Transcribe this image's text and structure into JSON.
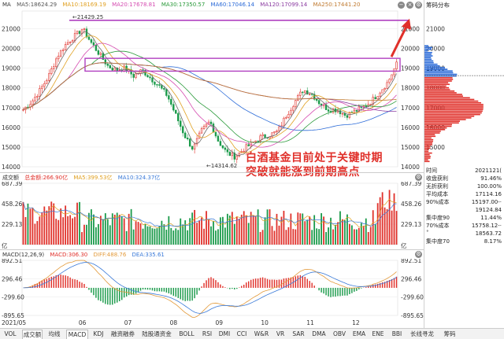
{
  "header_main": {
    "name": "MA",
    "ma5": "MA5:18624.29",
    "ma10": "MA10:18169.19",
    "ma20": "MA20:17678.81",
    "ma30": "MA30:17350.57",
    "ma60": "MA60:17046.14",
    "ma120": "MA120:17099.14",
    "ma250": "MA250:17441.20"
  },
  "header_vol": {
    "name": "成交额",
    "total": "总金额:266.90亿",
    "ma5": "MA5:399.53亿",
    "ma10": "MA10:324.37亿"
  },
  "header_macd": {
    "name": "MACD(12,26,9)",
    "macd": "MACD:306.30",
    "diff": "DIFF:488.76",
    "dea": "DEA:335.61"
  },
  "annotation": {
    "line1": "白酒基金目前处于关键时期",
    "line2": "突破就能涨到前期高点"
  },
  "price_labels": {
    "high": "21429.25",
    "low": "14314.62"
  },
  "colors": {
    "up": "#e0302a",
    "down": "#1a9a4a",
    "ma5": "#6a6a6a",
    "ma10": "#e0a020",
    "ma20": "#d54bb0",
    "ma30": "#2a9a3a",
    "ma60": "#2a6ad8",
    "ma120": "#8a3aa0",
    "ma250": "#c07a30",
    "box": "#b040c0",
    "annotation": "#e0302a",
    "diff": "#e39a3a",
    "dea": "#3a7ad8"
  },
  "chart_data": [
    {
      "type": "candlestick",
      "title": "MA",
      "ylim": [
        14000,
        21900
      ],
      "y_ticks": [
        "21000",
        "20000",
        "19000",
        "18000",
        "17000",
        "16000",
        "15000",
        "14000"
      ],
      "x_ticks": [
        "2021/05",
        "06",
        "07",
        "08",
        "09",
        "10",
        "11",
        "12"
      ],
      "ohlc_close": [
        16900,
        17300,
        17900,
        18600,
        19600,
        20200,
        20600,
        21000,
        20300,
        19700,
        19100,
        18900,
        19000,
        18600,
        18900,
        18500,
        18100,
        17600,
        16600,
        15600,
        14900,
        15800,
        16300,
        15300,
        14700,
        14500,
        14900,
        15200,
        15500,
        15600,
        15800,
        16600,
        17300,
        17900,
        17700,
        17200,
        16900,
        16900,
        16600,
        16800,
        17000,
        17300,
        17800,
        18300,
        19200
      ],
      "ma5": 18624.29,
      "ma10": 18169.19,
      "ma20": 17678.81,
      "ma30": 17350.57,
      "ma60": 17046.14,
      "ma120": 17099.14,
      "ma250": 17441.2,
      "annotations": [
        "21429.25",
        "14314.62"
      ]
    },
    {
      "type": "bar",
      "title": "成交额",
      "y_ticks": [
        "687.39",
        "458.26",
        "229.13"
      ],
      "unit": "亿",
      "total": 266.9,
      "ma5": 399.53,
      "ma10": 324.37
    },
    {
      "type": "bar",
      "title": "MACD(12,26,9)",
      "y_ticks": [
        "892.51",
        "296.46",
        "-299.60",
        "-895.65"
      ],
      "ylim": [
        -895.65,
        892.51
      ],
      "macd": 306.3,
      "diff": 488.76,
      "dea": 335.61
    }
  ],
  "tabs": [
    {
      "label": "VOL",
      "active": false
    },
    {
      "label": "成交额",
      "active": true
    },
    {
      "label": "均线",
      "active": false
    },
    {
      "label": "MACD",
      "active": true
    },
    {
      "label": "KDJ",
      "active": false
    },
    {
      "label": "融资融券",
      "active": false
    },
    {
      "label": "陆股通资金",
      "active": false
    },
    {
      "label": "BOLL",
      "active": false
    },
    {
      "label": "RSI",
      "active": false
    },
    {
      "label": "DMI",
      "active": false
    },
    {
      "label": "CCI",
      "active": false
    },
    {
      "label": "W&R",
      "active": false
    },
    {
      "label": "VR",
      "active": false
    },
    {
      "label": "SAR",
      "active": false
    },
    {
      "label": "DMA",
      "active": false
    },
    {
      "label": "OBV",
      "active": false
    },
    {
      "label": "EMA",
      "active": false
    },
    {
      "label": "ENE",
      "active": false
    },
    {
      "label": "BBI",
      "active": false
    },
    {
      "label": "长线寻龙",
      "active": false
    },
    {
      "label": "筹码",
      "active": false
    }
  ],
  "side": {
    "title": "筹码分布",
    "ticks": [
      "21000",
      "20000",
      "19000",
      "18000",
      "17000",
      "16000",
      "15000",
      "14000"
    ],
    "chip_rows": [
      {
        "label": "时间",
        "value": "2021121(",
        "color": "#222"
      },
      {
        "label": "收盘获利",
        "value": "91.46%",
        "color": "#222"
      },
      {
        "label": "无折获利",
        "value": "100.00%",
        "color": "#222"
      },
      {
        "label": "平均成本",
        "value": "17114.16",
        "color": "#222"
      },
      {
        "label": "90%成本",
        "value": "15197.00-·",
        "color": "#222"
      },
      {
        "label": "",
        "value": "19124.84",
        "color": "#222"
      },
      {
        "label": "集中度90",
        "value": "11.44%",
        "color": "#222"
      },
      {
        "label": "70%成本",
        "value": "15758.12-·",
        "color": "#222"
      },
      {
        "label": "˚",
        "value": "18563.72",
        "color": "#222"
      },
      {
        "label": "集中度70",
        "value": "8.17%",
        "color": "#222"
      }
    ]
  }
}
